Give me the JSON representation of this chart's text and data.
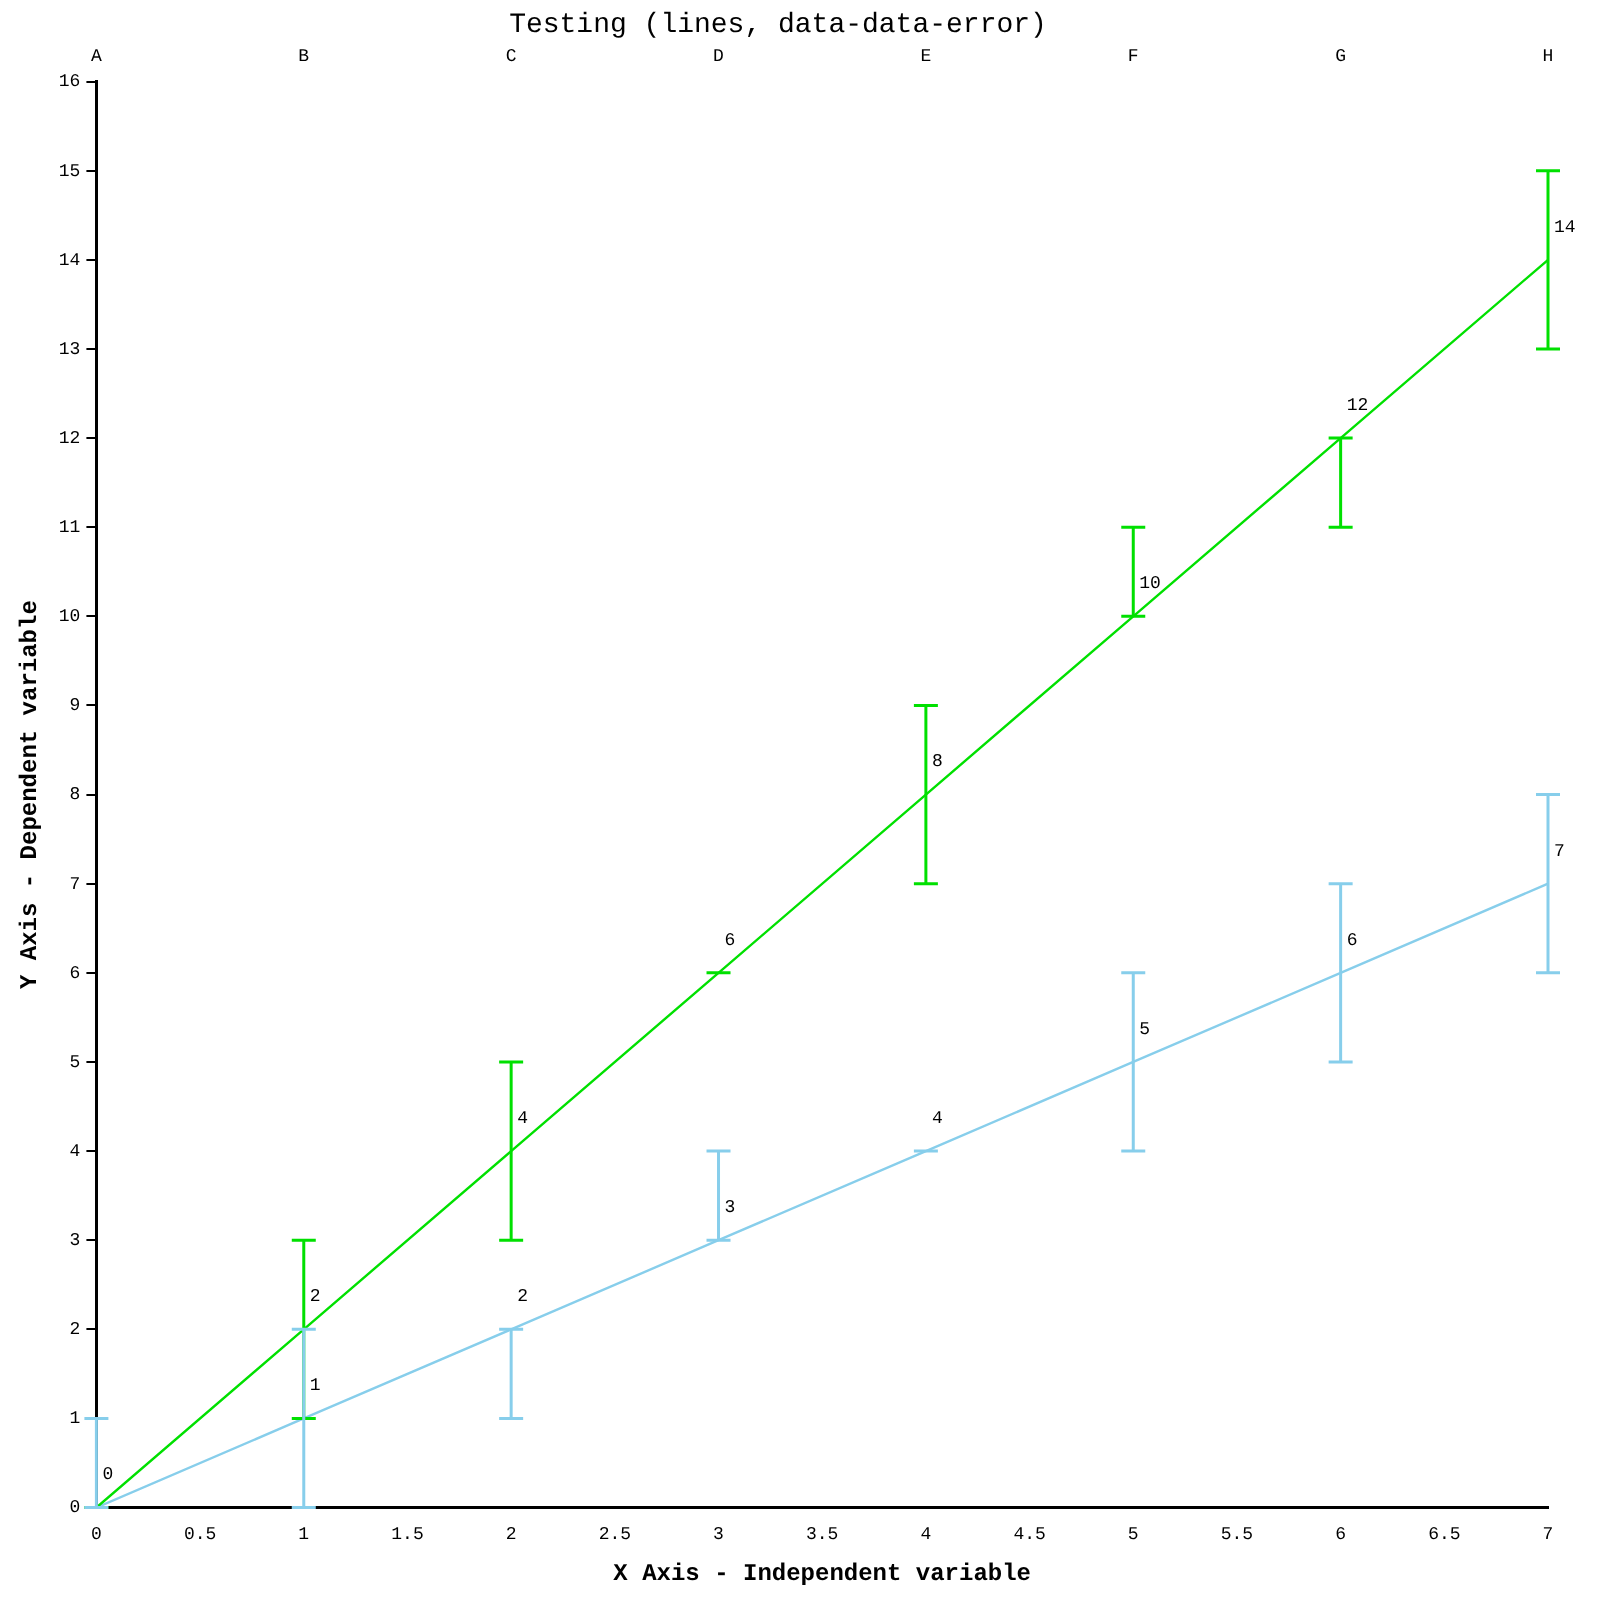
{
  "chart_data": {
    "type": "line",
    "title": "Testing (lines, data-data-error)",
    "xlabel": "X Axis - Independent variable",
    "ylabel": "Y Axis - Dependent variable",
    "x": [
      0,
      1,
      2,
      3,
      4,
      5,
      6,
      7
    ],
    "series": [
      {
        "color": "#00e000",
        "values": [
          0,
          2,
          4,
          6,
          8,
          10,
          12,
          14
        ],
        "value_labels": [
          "0",
          "2",
          "4",
          "6",
          "8",
          "10",
          "12",
          "14"
        ],
        "errors": [
          [
            0,
            0
          ],
          [
            1,
            3
          ],
          [
            3,
            5
          ],
          [
            6,
            6
          ],
          [
            7,
            9
          ],
          [
            10,
            11
          ],
          [
            11,
            12
          ],
          [
            13,
            15
          ]
        ]
      },
      {
        "color": "#87ceeb",
        "values": [
          0,
          1,
          2,
          3,
          4,
          5,
          6,
          7
        ],
        "value_labels": [
          null,
          "1",
          "2",
          "3",
          "4",
          "5",
          "6",
          "7"
        ],
        "errors": [
          [
            0,
            1
          ],
          [
            0,
            2
          ],
          [
            1,
            2
          ],
          [
            3,
            4
          ],
          [
            4,
            4
          ],
          [
            4,
            6
          ],
          [
            5,
            7
          ],
          [
            6,
            8
          ]
        ]
      }
    ],
    "xlim": [
      0,
      7
    ],
    "xticks": [
      0,
      0.5,
      1,
      1.5,
      2,
      2.5,
      3,
      3.5,
      4,
      4.5,
      5,
      5.5,
      6,
      6.5,
      7
    ],
    "annotations": [
      "A",
      "B",
      "C",
      "D",
      "E",
      "F",
      "G",
      "H"
    ],
    "ylim": [
      0,
      16
    ],
    "yticks": [
      0,
      1,
      2,
      3,
      4,
      5,
      6,
      7,
      8,
      9,
      10,
      11,
      12,
      13,
      14,
      15,
      16
    ],
    "grid": false,
    "legend": false,
    "marker": "none",
    "line_style": "solid"
  }
}
